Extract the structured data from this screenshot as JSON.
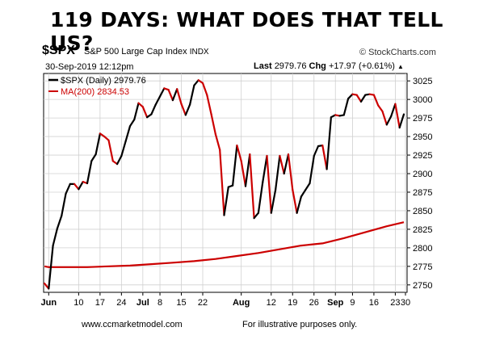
{
  "headline": "119 DAYS: WHAT DOES THAT TELL US?",
  "symbol": "$SPX",
  "index_name": "S&P 500 Large Cap Index",
  "index_tag": "INDX",
  "datetime": "30-Sep-2019 12:12pm",
  "watermark": "© StockCharts.com",
  "quote": {
    "last_label": "Last",
    "last_value": "2979.76",
    "chg_label": "Chg",
    "chg_value": "+17.97 (+0.61%)",
    "arrow": "▲"
  },
  "footer": {
    "website": "www.ccmarketmodel.com",
    "disclaimer": "For illustrative purposes only."
  },
  "colors": {
    "up": "#000000",
    "down": "#cc0000",
    "ma": "#cc0000",
    "grid": "#d0d0d0"
  },
  "chart_data": {
    "type": "line",
    "title": "$SPX S&P 500 Large Cap Index INDX",
    "ylim": [
      2740,
      3035
    ],
    "yticks": [
      2750,
      2775,
      2800,
      2825,
      2850,
      2875,
      2900,
      2925,
      2950,
      2975,
      3000,
      3025
    ],
    "xlim": [
      0,
      84
    ],
    "x_ticks": [
      {
        "label": "Jun",
        "x": 1,
        "major": true
      },
      {
        "label": "10",
        "x": 8,
        "major": false
      },
      {
        "label": "17",
        "x": 13,
        "major": false
      },
      {
        "label": "24",
        "x": 18,
        "major": false
      },
      {
        "label": "Jul",
        "x": 23,
        "major": true
      },
      {
        "label": "8",
        "x": 27,
        "major": false
      },
      {
        "label": "15",
        "x": 32,
        "major": false
      },
      {
        "label": "22",
        "x": 37,
        "major": false
      },
      {
        "label": "Aug",
        "x": 46,
        "major": true
      },
      {
        "label": "12",
        "x": 53,
        "major": false
      },
      {
        "label": "19",
        "x": 58,
        "major": false
      },
      {
        "label": "26",
        "x": 63,
        "major": false
      },
      {
        "label": "Sep",
        "x": 68,
        "major": true
      },
      {
        "label": "9",
        "x": 72,
        "major": false
      },
      {
        "label": "16",
        "x": 77,
        "major": false
      },
      {
        "label": "23",
        "x": 82,
        "major": false
      },
      {
        "label": "30",
        "x": 86,
        "major": false
      }
    ],
    "legend": [
      {
        "name": "$SPX (Daily) 2979.76",
        "color": "#000000"
      },
      {
        "name": "MA(200) 2834.53",
        "color": "#cc0000"
      }
    ],
    "series": [
      {
        "name": "$SPX (Daily) 2979.76",
        "x": [
          0,
          1,
          2,
          3,
          4,
          5,
          6,
          7,
          8,
          9,
          10,
          11,
          12,
          13,
          14,
          15,
          16,
          17,
          18,
          19,
          20,
          21,
          22,
          23,
          24,
          25,
          26,
          27,
          28,
          29,
          30,
          31,
          32,
          33,
          34,
          35,
          36,
          37,
          38,
          39,
          40,
          41,
          42,
          43,
          44,
          45,
          46,
          47,
          48,
          49,
          50,
          51,
          52,
          53,
          54,
          55,
          56,
          57,
          58,
          59,
          60,
          61,
          62,
          63,
          64,
          65,
          66,
          67,
          68,
          69,
          70,
          71,
          72,
          73,
          74,
          75,
          76,
          77,
          78,
          79,
          80,
          81,
          82,
          83,
          84
        ],
        "values": [
          2752,
          2745,
          2803,
          2826,
          2843,
          2873,
          2886,
          2886,
          2879,
          2889,
          2887,
          2917,
          2926,
          2954,
          2950,
          2945,
          2917,
          2913,
          2924,
          2944,
          2964,
          2973,
          2995,
          2990,
          2976,
          2980,
          2993,
          3004,
          3015,
          3013,
          2999,
          3014,
          2994,
          2979,
          2993,
          3019,
          3026,
          3022,
          3006,
          2980,
          2953,
          2932,
          2844,
          2882,
          2884,
          2938,
          2917,
          2883,
          2926,
          2840,
          2847,
          2888,
          2924,
          2847,
          2878,
          2924,
          2900,
          2926,
          2878,
          2847,
          2869,
          2878,
          2887,
          2924,
          2937,
          2938,
          2906,
          2976,
          2979,
          2978,
          2979,
          3001,
          3007,
          3006,
          2997,
          3006,
          3007,
          3006,
          2992,
          2984,
          2966,
          2977,
          2994,
          2962,
          2980
        ]
      },
      {
        "name": "MA(200) 2834.53",
        "x": [
          0,
          1,
          5,
          10,
          15,
          20,
          25,
          30,
          35,
          40,
          45,
          50,
          55,
          60,
          65,
          70,
          75,
          80,
          84
        ],
        "values": [
          2775,
          2774,
          2774,
          2774,
          2775,
          2776,
          2778,
          2780,
          2782,
          2785,
          2789,
          2793,
          2798,
          2803,
          2806,
          2813,
          2821,
          2829,
          2834.53
        ]
      }
    ]
  }
}
